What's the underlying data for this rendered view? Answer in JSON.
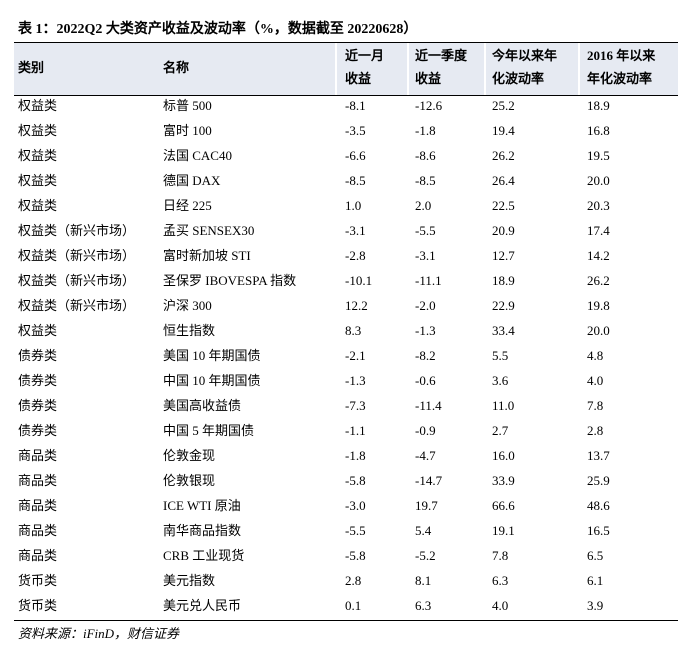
{
  "header": {
    "title": "表 1：2022Q2 大类资产收益及波动率（%，数据截至 20220628）"
  },
  "table": {
    "columns": [
      [
        "类别"
      ],
      [
        "名称"
      ],
      [
        "近一月",
        "收益"
      ],
      [
        "近一季度",
        "收益"
      ],
      [
        "今年以来年",
        "化波动率"
      ],
      [
        "2016 年以来",
        "年化波动率"
      ]
    ],
    "rows": [
      [
        "权益类",
        "标普 500",
        "-8.1",
        "-12.6",
        "25.2",
        "18.9"
      ],
      [
        "权益类",
        "富时 100",
        "-3.5",
        "-1.8",
        "19.4",
        "16.8"
      ],
      [
        "权益类",
        "法国 CAC40",
        "-6.6",
        "-8.6",
        "26.2",
        "19.5"
      ],
      [
        "权益类",
        "德国 DAX",
        "-8.5",
        "-8.5",
        "26.4",
        "20.0"
      ],
      [
        "权益类",
        "日经 225",
        "1.0",
        "2.0",
        "22.5",
        "20.3"
      ],
      [
        "权益类（新兴市场）",
        "孟买 SENSEX30",
        "-3.1",
        "-5.5",
        "20.9",
        "17.4"
      ],
      [
        "权益类（新兴市场）",
        "富时新加坡 STI",
        "-2.8",
        "-3.1",
        "12.7",
        "14.2"
      ],
      [
        "权益类（新兴市场）",
        "圣保罗 IBOVESPA 指数",
        "-10.1",
        "-11.1",
        "18.9",
        "26.2"
      ],
      [
        "权益类（新兴市场）",
        "沪深 300",
        "12.2",
        "-2.0",
        "22.9",
        "19.8"
      ],
      [
        "权益类",
        "恒生指数",
        "8.3",
        "-1.3",
        "33.4",
        "20.0"
      ],
      [
        "债券类",
        "美国 10 年期国债",
        "-2.1",
        "-8.2",
        "5.5",
        "4.8"
      ],
      [
        "债券类",
        "中国 10 年期国债",
        "-1.3",
        "-0.6",
        "3.6",
        "4.0"
      ],
      [
        "债券类",
        "美国高收益债",
        "-7.3",
        "-11.4",
        "11.0",
        "7.8"
      ],
      [
        "债券类",
        "中国 5 年期国债",
        "-1.1",
        "-0.9",
        "2.7",
        "2.8"
      ],
      [
        "商品类",
        "伦敦金现",
        "-1.8",
        "-4.7",
        "16.0",
        "13.7"
      ],
      [
        "商品类",
        "伦敦银现",
        "-5.8",
        "-14.7",
        "33.9",
        "25.9"
      ],
      [
        "商品类",
        "ICE WTI 原油",
        "-3.0",
        "19.7",
        "66.6",
        "48.6"
      ],
      [
        "商品类",
        "南华商品指数",
        "-5.5",
        "5.4",
        "19.1",
        "16.5"
      ],
      [
        "商品类",
        "CRB 工业现货",
        "-5.8",
        "-5.2",
        "7.8",
        "6.5"
      ],
      [
        "货币类",
        "美元指数",
        "2.8",
        "8.1",
        "6.3",
        "6.1"
      ],
      [
        "货币类",
        "美元兑人民币",
        "0.1",
        "6.3",
        "4.0",
        "3.9"
      ]
    ]
  },
  "footer": {
    "source": "资料来源：iFinD，财信证券"
  }
}
